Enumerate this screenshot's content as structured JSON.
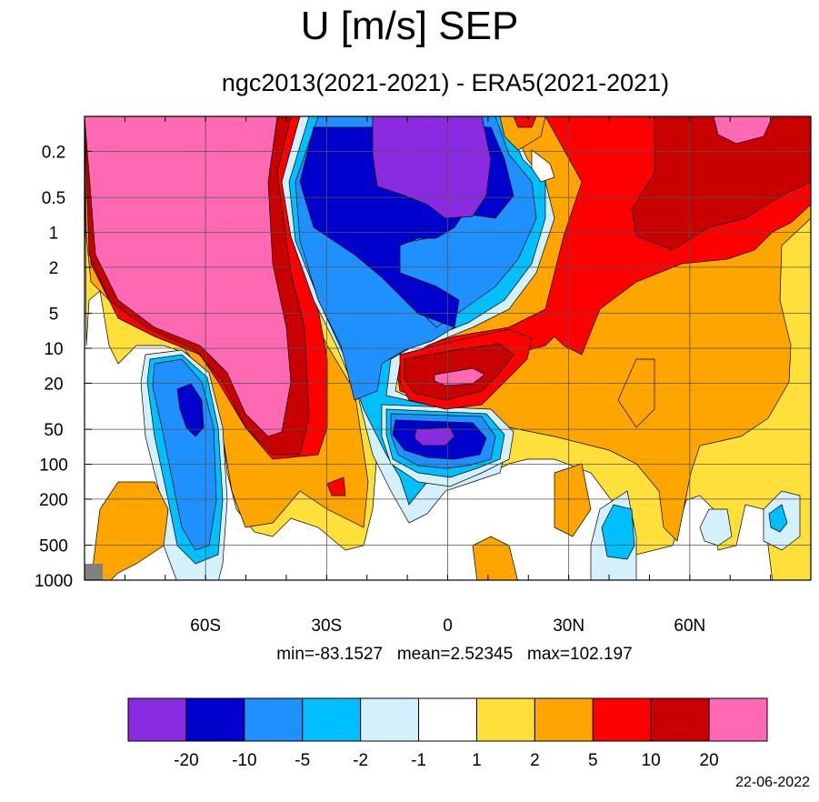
{
  "chart_data": {
    "type": "heatmap",
    "title": "U [m/s] SEP",
    "subtitle": "ngc2013(2021-2021) - ERA5(2021-2021)",
    "xlabel": "",
    "ylabel": "",
    "x_ticks": [
      "60S",
      "30S",
      "0",
      "30N",
      "60N"
    ],
    "x_tick_values": [
      -60,
      -30,
      0,
      30,
      60
    ],
    "xlim": [
      -90,
      90
    ],
    "y_ticks": [
      "0.2",
      "0.5",
      "1",
      "2",
      "5",
      "10",
      "20",
      "50",
      "100",
      "200",
      "500",
      "1000"
    ],
    "y_tick_values": [
      0.2,
      0.5,
      1,
      2,
      5,
      10,
      20,
      50,
      100,
      200,
      500,
      1000
    ],
    "y_scale": "log",
    "y_reversed": true,
    "ylim": [
      1000,
      0.1
    ],
    "grid": true,
    "stats": {
      "min": "-83.1527",
      "mean": "2.52345",
      "max": "102.197"
    },
    "colorbar": {
      "levels": [
        "-20",
        "-10",
        "-5",
        "-2",
        "-1",
        "1",
        "2",
        "5",
        "10",
        "20"
      ],
      "colors": [
        "#8a2be2",
        "#0000cd",
        "#1e90ff",
        "#00bfff",
        "#d4f0fc",
        "#ffffff",
        "#ffdf3a",
        "#ffa500",
        "#ff0000",
        "#c80000",
        "#ff69b4"
      ]
    }
  },
  "stats_text": {
    "min": "min=-83.1527",
    "mean": "mean=2.52345",
    "max": "max=102.197"
  },
  "footer_date": "22-06-2022"
}
